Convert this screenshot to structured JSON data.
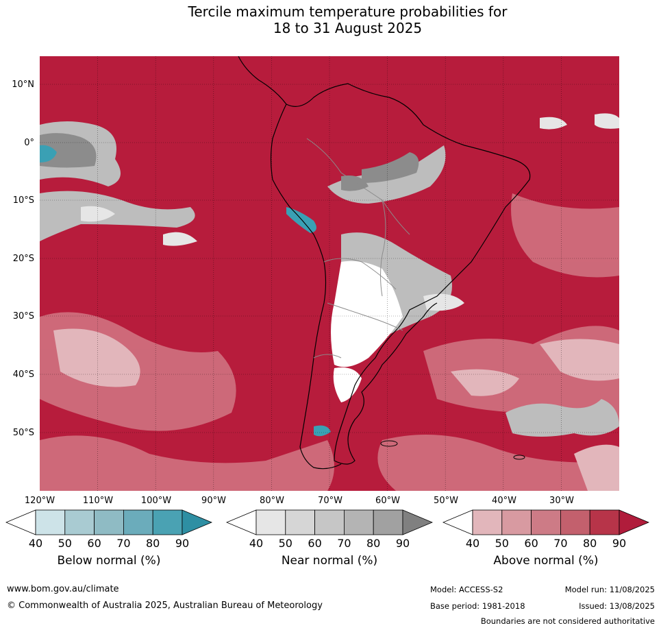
{
  "title": {
    "line1": "Tercile maximum temperature probabilities for",
    "line2": "18 to 31 August 2025"
  },
  "map": {
    "lat_labels": [
      "10°N",
      "0°",
      "10°S",
      "20°S",
      "30°S",
      "40°S",
      "50°S"
    ],
    "lon_labels": [
      "120°W",
      "110°W",
      "100°W",
      "90°W",
      "80°W",
      "70°W",
      "60°W",
      "50°W",
      "40°W",
      "30°W"
    ],
    "colors": {
      "above_dominant": "#b71c3c",
      "near_normal_grey": "#a6a6a6",
      "below_teal": "#3aa0b4",
      "coastline": "#000000",
      "borders": "#8c8c8c"
    }
  },
  "colorbars": [
    {
      "caption": "Below normal (%)",
      "ticks": [
        "40",
        "50",
        "60",
        "70",
        "80",
        "90"
      ],
      "colors": [
        "#ffffff",
        "#cde3e8",
        "#a9cbd2",
        "#8fbbc4",
        "#6bacbb",
        "#4aa2b3",
        "#2e8fa3"
      ]
    },
    {
      "caption": "Near normal (%)",
      "ticks": [
        "40",
        "50",
        "60",
        "70",
        "80",
        "90"
      ],
      "colors": [
        "#ffffff",
        "#e6e6e6",
        "#d6d6d6",
        "#c6c6c6",
        "#b4b4b4",
        "#a1a1a1",
        "#808080"
      ]
    },
    {
      "caption": "Above normal (%)",
      "ticks": [
        "40",
        "50",
        "60",
        "70",
        "80",
        "90"
      ],
      "colors": [
        "#ffffff",
        "#e2b6bb",
        "#d89aa1",
        "#cd7b86",
        "#c3606d",
        "#b73449",
        "#b01c3b"
      ]
    }
  ],
  "footer": {
    "website": "www.bom.gov.au/climate",
    "copyright": "© Commonwealth of Australia 2025, Australian Bureau of Meteorology",
    "model": "Model: ACCESS-S2",
    "base_period": "Base period: 1981-2018",
    "model_run": "Model run: 11/08/2025",
    "issued": "Issued: 13/08/2025",
    "disclaimer": "Boundaries are not considered authoritative"
  }
}
